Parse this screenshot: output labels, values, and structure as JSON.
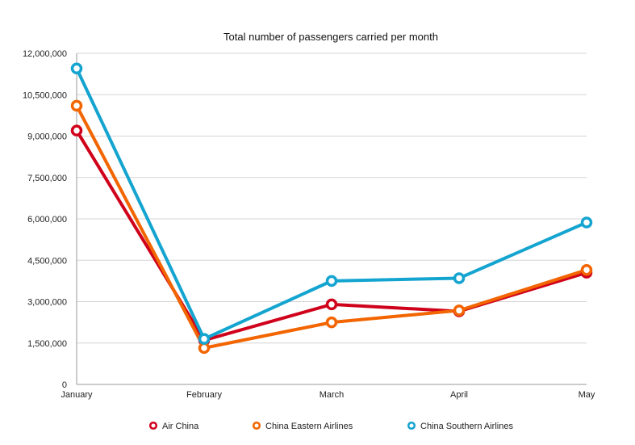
{
  "chart_data": {
    "type": "line",
    "title": "Total number of passengers carried per month",
    "xlabel": "",
    "ylabel": "",
    "categories": [
      "January",
      "February",
      "March",
      "April",
      "May"
    ],
    "ylim": [
      0,
      12000000
    ],
    "yticks": [
      0,
      1500000,
      3000000,
      4500000,
      6000000,
      7500000,
      9000000,
      10500000,
      12000000
    ],
    "ytick_labels": [
      "0",
      "1,500,000",
      "3,000,000",
      "4,500,000",
      "6,000,000",
      "7,500,000",
      "9,000,000",
      "10,500,000",
      "12,000,000"
    ],
    "grid": true,
    "legend_position": "bottom",
    "series": [
      {
        "name": "Air China",
        "color": "#d0021b",
        "values": [
          9200000,
          1600000,
          2900000,
          2650000,
          4050000
        ]
      },
      {
        "name": "China Eastern Airlines",
        "color": "#f26500",
        "values": [
          10100000,
          1320000,
          2250000,
          2680000,
          4150000
        ]
      },
      {
        "name": "China Southern Airlines",
        "color": "#14a4d0",
        "values": [
          11450000,
          1650000,
          3750000,
          3850000,
          5870000
        ]
      }
    ]
  }
}
